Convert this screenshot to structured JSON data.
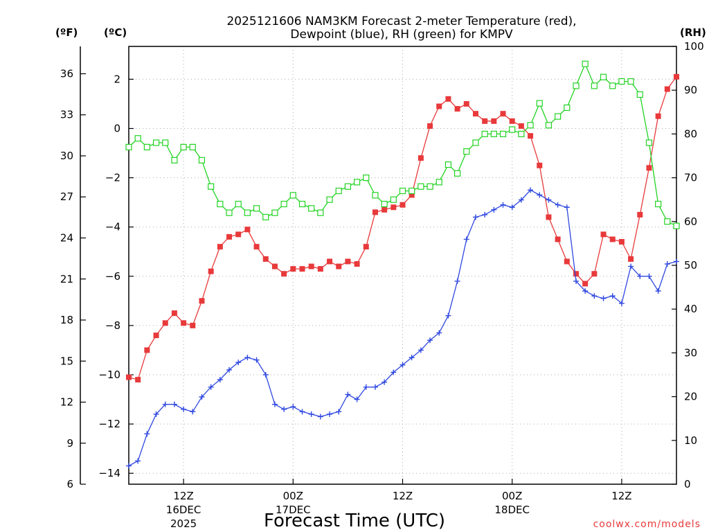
{
  "chart_data": {
    "type": "line",
    "title_line1": "2025121606 NAM3KM Forecast 2-meter Temperature (red),",
    "title_line2": "Dewpoint (blue), RH (green) for KMPV",
    "xlabel": "Forecast Time (UTC)",
    "credit": "coolwx.com/models",
    "unit_f": "(ºF)",
    "unit_c": "(ºC)",
    "unit_rh": "(RH)",
    "x_hours": [
      0,
      60
    ],
    "celsius_range": [
      -14.444,
      3.333
    ],
    "fahrenheit_ticks": [
      6,
      9,
      12,
      15,
      18,
      21,
      24,
      27,
      30,
      33,
      36
    ],
    "celsius_ticks": [
      -14,
      -12,
      -10,
      -8,
      -6,
      -4,
      -2,
      0,
      2
    ],
    "rh_ticks": [
      0,
      10,
      20,
      30,
      40,
      50,
      60,
      70,
      80,
      90,
      100
    ],
    "x_ticks": [
      {
        "hour": 6,
        "line1": "12Z",
        "line2": "16DEC",
        "line3": "2025"
      },
      {
        "hour": 18,
        "line1": "00Z",
        "line2": "17DEC",
        "line3": ""
      },
      {
        "hour": 30,
        "line1": "12Z",
        "line2": "",
        "line3": ""
      },
      {
        "hour": 42,
        "line1": "00Z",
        "line2": "18DEC",
        "line3": ""
      },
      {
        "hour": 54,
        "line1": "12Z",
        "line2": "",
        "line3": ""
      }
    ],
    "hours": [
      0,
      1,
      2,
      3,
      4,
      5,
      6,
      7,
      8,
      9,
      10,
      11,
      12,
      13,
      14,
      15,
      16,
      17,
      18,
      19,
      20,
      21,
      22,
      23,
      24,
      25,
      26,
      27,
      28,
      29,
      30,
      31,
      32,
      33,
      34,
      35,
      36,
      37,
      38,
      39,
      40,
      41,
      42,
      43,
      44,
      45,
      46,
      47,
      48,
      49,
      50,
      51,
      52,
      53,
      54,
      55,
      56,
      57,
      58,
      59,
      60
    ],
    "series": [
      {
        "name": "Temperature",
        "color": "#e8393b",
        "marker": "square-filled",
        "values": [
          -10.1,
          -10.2,
          -9.0,
          -8.4,
          -7.9,
          -7.5,
          -7.9,
          -8.0,
          -7.0,
          -5.8,
          -4.8,
          -4.4,
          -4.3,
          -4.1,
          -4.8,
          -5.3,
          -5.6,
          -5.9,
          -5.7,
          -5.7,
          -5.6,
          -5.7,
          -5.4,
          -5.6,
          -5.4,
          -5.5,
          -4.8,
          -3.4,
          -3.3,
          -3.2,
          -3.1,
          -2.7,
          -1.2,
          0.1,
          0.9,
          1.2,
          0.8,
          1.0,
          0.6,
          0.3,
          0.3,
          0.6,
          0.3,
          0.1,
          -0.3,
          -1.5,
          -3.6,
          -4.5,
          -5.4,
          -5.9,
          -6.3,
          -5.9,
          -4.3,
          -4.5,
          -4.6,
          -5.3,
          -3.5,
          -1.6,
          0.5,
          1.6,
          2.1
        ]
      },
      {
        "name": "Dewpoint",
        "color": "#2f48e0",
        "marker": "plus",
        "values": [
          -13.7,
          -13.5,
          -12.4,
          -11.6,
          -11.2,
          -11.2,
          -11.4,
          -11.5,
          -10.9,
          -10.5,
          -10.2,
          -9.8,
          -9.5,
          -9.3,
          -9.4,
          -10.0,
          -11.2,
          -11.4,
          -11.3,
          -11.5,
          -11.6,
          -11.7,
          -11.6,
          -11.5,
          -10.8,
          -11.0,
          -10.5,
          -10.5,
          -10.3,
          -9.9,
          -9.6,
          -9.3,
          -9.0,
          -8.6,
          -8.3,
          -7.6,
          -6.2,
          -4.5,
          -3.6,
          -3.5,
          -3.3,
          -3.1,
          -3.2,
          -2.9,
          -2.5,
          -2.7,
          -2.9,
          -3.1,
          -3.2,
          -6.2,
          -6.6,
          -6.8,
          -6.9,
          -6.8,
          -7.1,
          -5.6,
          -6.0,
          -6.0,
          -6.6,
          -5.5,
          -5.4
        ]
      },
      {
        "name": "RH",
        "color": "#22d322",
        "marker": "square-open",
        "values": [
          77,
          79,
          77,
          78,
          78,
          74,
          77,
          77,
          74,
          68,
          64,
          62,
          64,
          62,
          63,
          61,
          62,
          64,
          66,
          64,
          63,
          62,
          65,
          67,
          68,
          69,
          70,
          66,
          64,
          65,
          67,
          67,
          68,
          68,
          69,
          73,
          71,
          76,
          78,
          80,
          80,
          80,
          81,
          80,
          82,
          87,
          82,
          84,
          86,
          91,
          96,
          91,
          93,
          91,
          92,
          92,
          89,
          78,
          64,
          60,
          59
        ]
      }
    ],
    "legend": "none (series named in title)"
  }
}
